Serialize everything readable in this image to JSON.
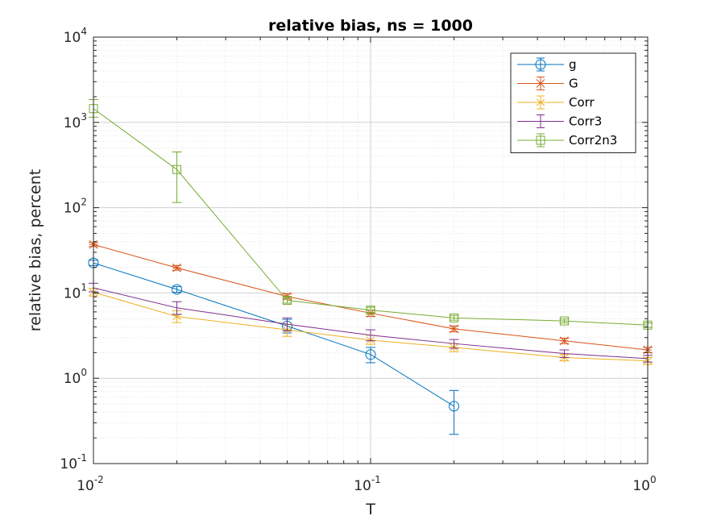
{
  "chart_data": {
    "type": "line",
    "title": "relative bias, ns = 1000",
    "xlabel": "T",
    "ylabel": "relative bias, percent",
    "xscale": "log",
    "yscale": "log",
    "xlim": [
      0.01,
      1
    ],
    "ylim": [
      0.1,
      10000
    ],
    "x_ticks": [
      {
        "base": "10",
        "exp": "-2",
        "value": 0.01
      },
      {
        "base": "10",
        "exp": "-1",
        "value": 0.1
      },
      {
        "base": "10",
        "exp": "0",
        "value": 1
      }
    ],
    "y_ticks": [
      {
        "base": "10",
        "exp": "-1",
        "value": 0.1
      },
      {
        "base": "10",
        "exp": "0",
        "value": 1
      },
      {
        "base": "10",
        "exp": "1",
        "value": 10
      },
      {
        "base": "10",
        "exp": "2",
        "value": 100
      },
      {
        "base": "10",
        "exp": "3",
        "value": 1000
      },
      {
        "base": "10",
        "exp": "4",
        "value": 10000
      }
    ],
    "grid": true,
    "minor_grid": true,
    "legend_position": "top-right",
    "series": [
      {
        "name": "g",
        "color": "#0072BD",
        "marker": "circle",
        "x": [
          0.01,
          0.02,
          0.05,
          0.1,
          0.2
        ],
        "y": [
          22.5,
          11.0,
          4.1,
          1.9,
          0.47
        ],
        "err_low": [
          21.0,
          10.2,
          3.4,
          1.52,
          0.22
        ],
        "err_high": [
          24.2,
          11.9,
          4.9,
          2.3,
          0.72
        ]
      },
      {
        "name": "G",
        "color": "#D95319",
        "marker": "asterisk",
        "x": [
          0.01,
          0.02,
          0.05,
          0.1,
          0.2,
          0.5,
          1
        ],
        "y": [
          37.0,
          19.7,
          9.1,
          5.8,
          3.8,
          2.75,
          2.15
        ],
        "err_low": [
          35.0,
          18.5,
          8.5,
          5.3,
          3.5,
          2.55,
          2.0
        ],
        "err_high": [
          39.0,
          21.0,
          9.8,
          6.3,
          4.1,
          2.95,
          2.3
        ]
      },
      {
        "name": "Corr",
        "color": "#EDB120",
        "marker": "star",
        "x": [
          0.01,
          0.02,
          0.05,
          0.1,
          0.2,
          0.5,
          1
        ],
        "y": [
          10.2,
          5.3,
          3.7,
          2.8,
          2.3,
          1.75,
          1.6
        ],
        "err_low": [
          9.2,
          4.5,
          3.1,
          2.5,
          2.05,
          1.6,
          1.45
        ],
        "err_high": [
          11.3,
          6.2,
          4.3,
          3.2,
          2.55,
          1.9,
          1.75
        ]
      },
      {
        "name": "Corr3",
        "color": "#7E2F8E",
        "marker": "none",
        "x": [
          0.01,
          0.02,
          0.05,
          0.1,
          0.2,
          0.5,
          1
        ],
        "y": [
          11.5,
          6.7,
          4.3,
          3.2,
          2.55,
          1.95,
          1.7
        ],
        "err_low": [
          10.3,
          5.6,
          3.6,
          2.75,
          2.25,
          1.75,
          1.55
        ],
        "err_high": [
          13.0,
          7.9,
          5.1,
          3.7,
          2.85,
          2.15,
          1.85
        ]
      },
      {
        "name": "Corr2n3",
        "color": "#77AC30",
        "marker": "square",
        "x": [
          0.01,
          0.02,
          0.05,
          0.1,
          0.2,
          0.5,
          1
        ],
        "y": [
          1450,
          280,
          8.2,
          6.3,
          5.1,
          4.7,
          4.2
        ],
        "err_low": [
          1150,
          115,
          7.6,
          5.9,
          4.8,
          4.45,
          3.95
        ],
        "err_high": [
          1850,
          450,
          8.9,
          6.8,
          5.45,
          4.95,
          4.45
        ]
      }
    ]
  }
}
